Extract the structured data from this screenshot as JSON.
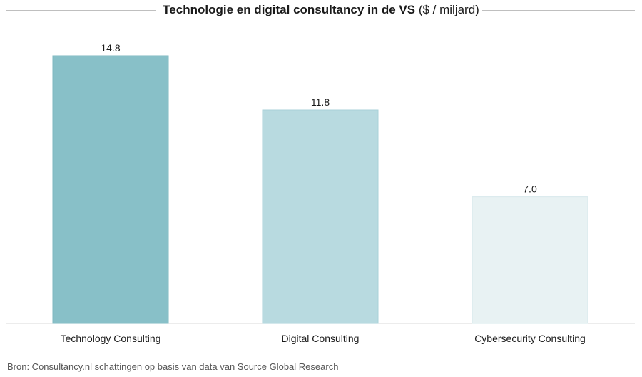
{
  "chart_data": {
    "type": "bar",
    "title": "Technologie en digital consultancy in de VS",
    "subtitle": "($ / miljard)",
    "categories": [
      "Technology Consulting",
      "Digital Consulting",
      "Cybersecurity Consulting"
    ],
    "values": [
      14.8,
      11.8,
      7.0
    ],
    "value_labels": [
      "14.8",
      "11.8",
      "7.0"
    ],
    "colors": [
      "#88c0c8",
      "#b8dae0",
      "#e8f2f3"
    ],
    "border_colors": [
      "#7fb8c0",
      "#a9d1d8",
      "#d6e8eb"
    ],
    "ylim": [
      0,
      16
    ],
    "grid": false,
    "legend": "none"
  },
  "footer": {
    "source": "Bron: Consultancy.nl schattingen op basis van data van Source Global Research"
  }
}
